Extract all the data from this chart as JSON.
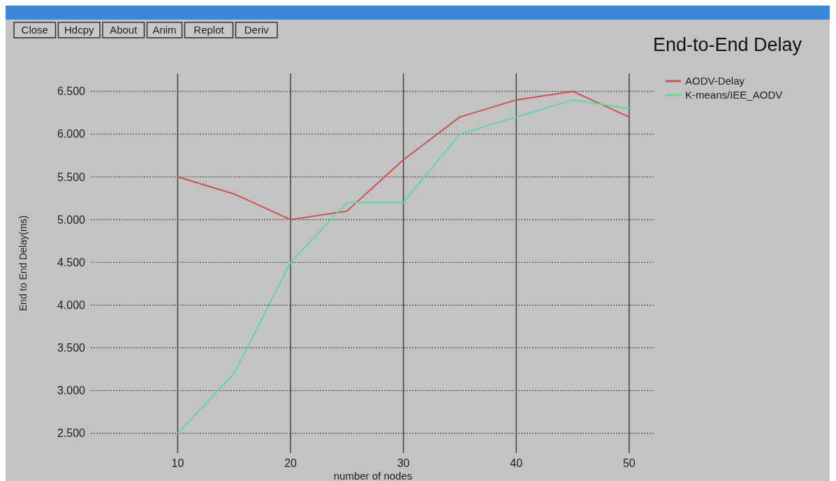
{
  "chart_data": {
    "type": "line",
    "title": "End-to-End Delay",
    "xlabel": "number of nodes",
    "ylabel": "End to End Delay(ms)",
    "annotations": [
      "Close",
      "Hdcpy",
      "About",
      "Anim",
      "Replot",
      "Deriv"
    ],
    "x": [
      10,
      15,
      20,
      25,
      30,
      35,
      40,
      45,
      50
    ],
    "series": [
      {
        "name": "AODV-Delay",
        "color": "#d05050",
        "values": [
          5.5,
          5.3,
          5.0,
          5.1,
          5.7,
          6.2,
          6.4,
          6.5,
          6.2
        ]
      },
      {
        "name": "K-means/IEE_AODV",
        "color": "#60d8a0",
        "values": [
          2.5,
          3.2,
          4.5,
          5.2,
          5.2,
          6.0,
          6.2,
          6.4,
          6.3
        ]
      }
    ],
    "xlim": [
      2.3,
      52.3
    ],
    "xticks": [
      10,
      20,
      30,
      40,
      50
    ],
    "ylim": [
      2.27,
      6.71
    ],
    "yticks": [
      {
        "value": 2.5,
        "label": "2.500"
      },
      {
        "value": 3,
        "label": "3.000"
      },
      {
        "value": 3.5,
        "label": "3.500"
      },
      {
        "value": 4,
        "label": "4.000"
      },
      {
        "value": 4.5,
        "label": "4.500"
      },
      {
        "value": 5,
        "label": "5.000"
      },
      {
        "value": 5.5,
        "label": "5.500"
      },
      {
        "value": 6,
        "label": "6.000"
      },
      {
        "value": 6.5,
        "label": "6.500"
      }
    ],
    "grid": true,
    "legend": "top right",
    "line_style": "solid",
    "marker": "none"
  }
}
